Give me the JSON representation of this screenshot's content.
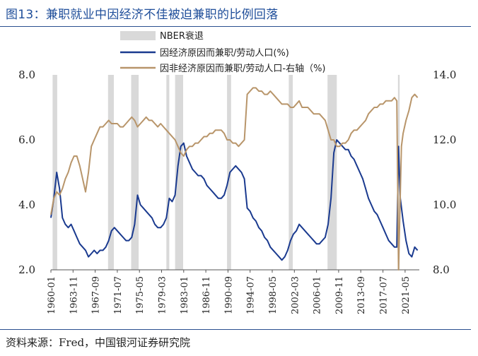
{
  "title": "图13：兼职就业中因经济不佳被迫兼职的比例回落",
  "source": "资料来源：Fred，中国银河证券研究院",
  "chart_data": {
    "type": "line",
    "x_tick_labels": [
      "1960-01",
      "1963-11",
      "1967-09",
      "1971-07",
      "1975-05",
      "1979-03",
      "1983-01",
      "1986-11",
      "1990-09",
      "1994-07",
      "1998-05",
      "2002-03",
      "2006-01",
      "2009-11",
      "2013-09",
      "2017-07",
      "2021-05"
    ],
    "x_range": [
      1960.0,
      2023.8
    ],
    "y_left": {
      "range": [
        2.0,
        8.0
      ],
      "ticks": [
        "2.0",
        "4.0",
        "6.0",
        "8.0"
      ]
    },
    "y_right": {
      "range": [
        8.0,
        14.0
      ],
      "ticks": [
        "8.0",
        "10.0",
        "12.0",
        "14.0"
      ]
    },
    "legend": [
      {
        "label": "NBER衰退",
        "kind": "area"
      },
      {
        "label": "因经济原因而兼职/劳动人口(%)",
        "kind": "line"
      },
      {
        "label": "因非经济原因而兼职/劳动人口-右轴（%)",
        "kind": "line"
      }
    ],
    "recessions": [
      [
        1960.3,
        1961.1
      ],
      [
        1969.9,
        1970.9
      ],
      [
        1973.9,
        1975.2
      ],
      [
        1980.0,
        1980.5
      ],
      [
        1981.5,
        1982.9
      ],
      [
        1990.5,
        1991.2
      ],
      [
        2001.2,
        2001.9
      ],
      [
        2007.9,
        2009.5
      ],
      [
        2020.1,
        2020.4
      ]
    ],
    "series": [
      {
        "name": "因经济原因而兼职/劳动人口(%)",
        "axis": "left",
        "color": "#1a3a8f",
        "points": [
          [
            1960.0,
            3.6
          ],
          [
            1960.5,
            4.2
          ],
          [
            1961.0,
            5.0
          ],
          [
            1961.5,
            4.5
          ],
          [
            1962.0,
            3.6
          ],
          [
            1962.5,
            3.4
          ],
          [
            1963.0,
            3.3
          ],
          [
            1963.5,
            3.4
          ],
          [
            1964.0,
            3.2
          ],
          [
            1964.5,
            3.0
          ],
          [
            1965.0,
            2.8
          ],
          [
            1965.5,
            2.7
          ],
          [
            1966.0,
            2.6
          ],
          [
            1966.5,
            2.4
          ],
          [
            1967.0,
            2.5
          ],
          [
            1967.5,
            2.6
          ],
          [
            1968.0,
            2.5
          ],
          [
            1968.5,
            2.6
          ],
          [
            1969.0,
            2.6
          ],
          [
            1969.5,
            2.7
          ],
          [
            1970.0,
            2.9
          ],
          [
            1970.5,
            3.2
          ],
          [
            1971.0,
            3.3
          ],
          [
            1971.5,
            3.2
          ],
          [
            1972.0,
            3.1
          ],
          [
            1972.5,
            3.0
          ],
          [
            1973.0,
            2.9
          ],
          [
            1973.5,
            2.9
          ],
          [
            1974.0,
            3.0
          ],
          [
            1974.5,
            3.4
          ],
          [
            1975.0,
            4.3
          ],
          [
            1975.5,
            4.0
          ],
          [
            1976.0,
            3.9
          ],
          [
            1976.5,
            3.8
          ],
          [
            1977.0,
            3.7
          ],
          [
            1977.5,
            3.6
          ],
          [
            1978.0,
            3.4
          ],
          [
            1978.5,
            3.3
          ],
          [
            1979.0,
            3.3
          ],
          [
            1979.5,
            3.4
          ],
          [
            1980.0,
            3.6
          ],
          [
            1980.5,
            4.2
          ],
          [
            1981.0,
            4.1
          ],
          [
            1981.5,
            4.3
          ],
          [
            1982.0,
            5.2
          ],
          [
            1982.5,
            5.8
          ],
          [
            1983.0,
            5.9
          ],
          [
            1983.5,
            5.5
          ],
          [
            1984.0,
            5.3
          ],
          [
            1984.5,
            5.1
          ],
          [
            1985.0,
            5.0
          ],
          [
            1985.5,
            4.9
          ],
          [
            1986.0,
            4.9
          ],
          [
            1986.5,
            4.8
          ],
          [
            1987.0,
            4.6
          ],
          [
            1987.5,
            4.5
          ],
          [
            1988.0,
            4.4
          ],
          [
            1988.5,
            4.3
          ],
          [
            1989.0,
            4.2
          ],
          [
            1989.5,
            4.2
          ],
          [
            1990.0,
            4.3
          ],
          [
            1990.5,
            4.6
          ],
          [
            1991.0,
            5.0
          ],
          [
            1991.5,
            5.1
          ],
          [
            1992.0,
            5.2
          ],
          [
            1992.5,
            5.1
          ],
          [
            1993.0,
            5.0
          ],
          [
            1993.5,
            4.8
          ],
          [
            1994.0,
            3.9
          ],
          [
            1994.5,
            3.8
          ],
          [
            1995.0,
            3.6
          ],
          [
            1995.5,
            3.5
          ],
          [
            1996.0,
            3.3
          ],
          [
            1996.5,
            3.2
          ],
          [
            1997.0,
            3.0
          ],
          [
            1997.5,
            2.9
          ],
          [
            1998.0,
            2.7
          ],
          [
            1998.5,
            2.6
          ],
          [
            1999.0,
            2.5
          ],
          [
            1999.5,
            2.4
          ],
          [
            2000.0,
            2.3
          ],
          [
            2000.5,
            2.4
          ],
          [
            2001.0,
            2.6
          ],
          [
            2001.5,
            2.9
          ],
          [
            2002.0,
            3.1
          ],
          [
            2002.5,
            3.2
          ],
          [
            2003.0,
            3.4
          ],
          [
            2003.5,
            3.3
          ],
          [
            2004.0,
            3.2
          ],
          [
            2004.5,
            3.1
          ],
          [
            2005.0,
            3.0
          ],
          [
            2005.5,
            2.9
          ],
          [
            2006.0,
            2.8
          ],
          [
            2006.5,
            2.8
          ],
          [
            2007.0,
            2.9
          ],
          [
            2007.5,
            3.0
          ],
          [
            2008.0,
            3.4
          ],
          [
            2008.5,
            4.2
          ],
          [
            2009.0,
            5.6
          ],
          [
            2009.5,
            6.0
          ],
          [
            2010.0,
            5.9
          ],
          [
            2010.5,
            5.8
          ],
          [
            2011.0,
            5.7
          ],
          [
            2011.5,
            5.7
          ],
          [
            2012.0,
            5.5
          ],
          [
            2012.5,
            5.4
          ],
          [
            2013.0,
            5.2
          ],
          [
            2013.5,
            5.0
          ],
          [
            2014.0,
            4.8
          ],
          [
            2014.5,
            4.5
          ],
          [
            2015.0,
            4.2
          ],
          [
            2015.5,
            4.0
          ],
          [
            2016.0,
            3.8
          ],
          [
            2016.5,
            3.7
          ],
          [
            2017.0,
            3.5
          ],
          [
            2017.5,
            3.3
          ],
          [
            2018.0,
            3.1
          ],
          [
            2018.5,
            2.9
          ],
          [
            2019.0,
            2.8
          ],
          [
            2019.5,
            2.7
          ],
          [
            2019.9,
            2.7
          ],
          [
            2020.2,
            5.8
          ],
          [
            2020.5,
            4.2
          ],
          [
            2021.0,
            3.5
          ],
          [
            2021.5,
            2.9
          ],
          [
            2022.0,
            2.5
          ],
          [
            2022.5,
            2.4
          ],
          [
            2023.0,
            2.7
          ],
          [
            2023.5,
            2.6
          ]
        ]
      },
      {
        "name": "因非经济原因而兼职/劳动人口-右轴（%)",
        "axis": "right",
        "color": "#b8956a",
        "points": [
          [
            1960.0,
            9.7
          ],
          [
            1960.5,
            10.2
          ],
          [
            1961.0,
            10.4
          ],
          [
            1961.5,
            10.3
          ],
          [
            1962.0,
            10.5
          ],
          [
            1962.5,
            10.8
          ],
          [
            1963.0,
            11.0
          ],
          [
            1963.5,
            11.3
          ],
          [
            1964.0,
            11.5
          ],
          [
            1964.5,
            11.5
          ],
          [
            1965.0,
            11.2
          ],
          [
            1965.5,
            10.8
          ],
          [
            1966.0,
            10.4
          ],
          [
            1966.5,
            11.0
          ],
          [
            1967.0,
            11.8
          ],
          [
            1967.5,
            12.0
          ],
          [
            1968.0,
            12.2
          ],
          [
            1968.5,
            12.4
          ],
          [
            1969.0,
            12.4
          ],
          [
            1969.5,
            12.5
          ],
          [
            1970.0,
            12.6
          ],
          [
            1970.5,
            12.5
          ],
          [
            1971.0,
            12.5
          ],
          [
            1971.5,
            12.5
          ],
          [
            1972.0,
            12.4
          ],
          [
            1972.5,
            12.4
          ],
          [
            1973.0,
            12.5
          ],
          [
            1973.5,
            12.6
          ],
          [
            1974.0,
            12.7
          ],
          [
            1974.5,
            12.6
          ],
          [
            1975.0,
            12.4
          ],
          [
            1975.5,
            12.5
          ],
          [
            1976.0,
            12.6
          ],
          [
            1976.5,
            12.7
          ],
          [
            1977.0,
            12.6
          ],
          [
            1977.5,
            12.6
          ],
          [
            1978.0,
            12.5
          ],
          [
            1978.5,
            12.4
          ],
          [
            1979.0,
            12.5
          ],
          [
            1979.5,
            12.4
          ],
          [
            1980.0,
            12.3
          ],
          [
            1980.5,
            12.2
          ],
          [
            1981.0,
            12.1
          ],
          [
            1981.5,
            12.0
          ],
          [
            1982.0,
            11.8
          ],
          [
            1982.5,
            11.6
          ],
          [
            1983.0,
            11.5
          ],
          [
            1983.5,
            11.7
          ],
          [
            1984.0,
            11.8
          ],
          [
            1984.5,
            11.8
          ],
          [
            1985.0,
            11.9
          ],
          [
            1985.5,
            11.9
          ],
          [
            1986.0,
            12.0
          ],
          [
            1986.5,
            12.1
          ],
          [
            1987.0,
            12.1
          ],
          [
            1987.5,
            12.2
          ],
          [
            1988.0,
            12.2
          ],
          [
            1988.5,
            12.3
          ],
          [
            1989.0,
            12.3
          ],
          [
            1989.5,
            12.3
          ],
          [
            1990.0,
            12.2
          ],
          [
            1990.5,
            12.0
          ],
          [
            1991.0,
            12.0
          ],
          [
            1991.5,
            11.9
          ],
          [
            1992.0,
            11.9
          ],
          [
            1992.5,
            11.8
          ],
          [
            1993.0,
            11.9
          ],
          [
            1993.5,
            12.0
          ],
          [
            1994.0,
            13.4
          ],
          [
            1994.5,
            13.5
          ],
          [
            1995.0,
            13.6
          ],
          [
            1995.5,
            13.6
          ],
          [
            1996.0,
            13.5
          ],
          [
            1996.5,
            13.5
          ],
          [
            1997.0,
            13.4
          ],
          [
            1997.5,
            13.4
          ],
          [
            1998.0,
            13.5
          ],
          [
            1998.5,
            13.4
          ],
          [
            1999.0,
            13.3
          ],
          [
            1999.5,
            13.2
          ],
          [
            2000.0,
            13.1
          ],
          [
            2000.5,
            13.1
          ],
          [
            2001.0,
            13.1
          ],
          [
            2001.5,
            13.0
          ],
          [
            2002.0,
            13.0
          ],
          [
            2002.5,
            13.1
          ],
          [
            2003.0,
            13.2
          ],
          [
            2003.5,
            13.0
          ],
          [
            2004.0,
            13.0
          ],
          [
            2004.5,
            13.0
          ],
          [
            2005.0,
            12.9
          ],
          [
            2005.5,
            12.8
          ],
          [
            2006.0,
            12.8
          ],
          [
            2006.5,
            12.8
          ],
          [
            2007.0,
            12.7
          ],
          [
            2007.5,
            12.6
          ],
          [
            2008.0,
            12.3
          ],
          [
            2008.5,
            12.0
          ],
          [
            2009.0,
            12.0
          ],
          [
            2009.5,
            11.8
          ],
          [
            2010.0,
            11.8
          ],
          [
            2010.5,
            11.9
          ],
          [
            2011.0,
            11.9
          ],
          [
            2011.5,
            12.0
          ],
          [
            2012.0,
            12.2
          ],
          [
            2012.5,
            12.3
          ],
          [
            2013.0,
            12.3
          ],
          [
            2013.5,
            12.4
          ],
          [
            2014.0,
            12.5
          ],
          [
            2014.5,
            12.6
          ],
          [
            2015.0,
            12.8
          ],
          [
            2015.5,
            12.9
          ],
          [
            2016.0,
            13.0
          ],
          [
            2016.5,
            13.0
          ],
          [
            2017.0,
            13.1
          ],
          [
            2017.5,
            13.1
          ],
          [
            2018.0,
            13.2
          ],
          [
            2018.5,
            13.2
          ],
          [
            2019.0,
            13.2
          ],
          [
            2019.5,
            13.3
          ],
          [
            2019.9,
            13.2
          ],
          [
            2020.2,
            8.0
          ],
          [
            2020.4,
            9.5
          ],
          [
            2020.7,
            11.8
          ],
          [
            2021.0,
            12.2
          ],
          [
            2021.5,
            12.6
          ],
          [
            2022.0,
            12.9
          ],
          [
            2022.5,
            13.3
          ],
          [
            2023.0,
            13.4
          ],
          [
            2023.5,
            13.3
          ]
        ]
      }
    ]
  }
}
